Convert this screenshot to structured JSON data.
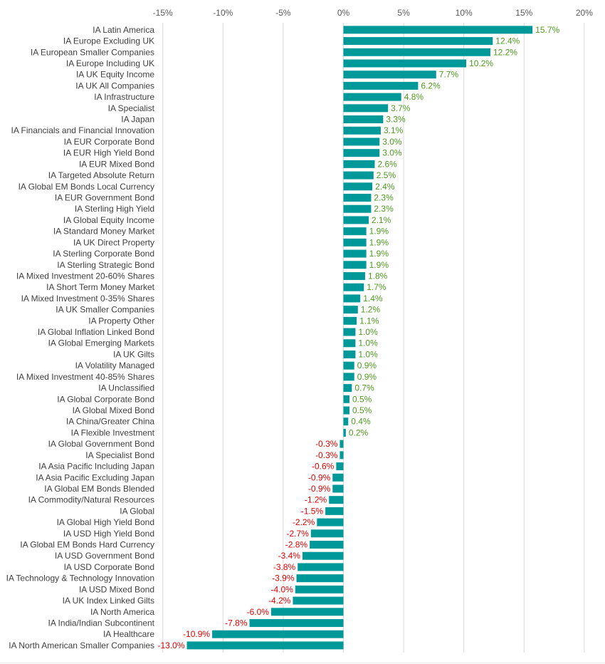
{
  "chart_data": {
    "type": "bar",
    "orientation": "horizontal",
    "xlim": [
      -15,
      20
    ],
    "x_ticks": [
      -15,
      -10,
      -5,
      0,
      5,
      10,
      15,
      20
    ],
    "x_tick_labels": [
      "-15%",
      "-10%",
      "-5%",
      "0%",
      "5%",
      "10%",
      "15%",
      "20%"
    ],
    "grid": true,
    "legend": "none",
    "colors": {
      "bar": "#00999a",
      "positive_label": "#4e9a1e",
      "negative_label": "#e00000",
      "grid": "#d9d9d9",
      "category_text": "#404040",
      "tick_text": "#595959"
    },
    "categories": [
      "IA Latin America",
      "IA Europe Excluding UK",
      "IA European Smaller Companies",
      "IA Europe Including UK",
      "IA UK Equity Income",
      "IA UK All Companies",
      "IA Infrastructure",
      "IA Specialist",
      "IA Japan",
      "IA Financials and Financial Innovation",
      "IA EUR Corporate Bond",
      "IA EUR High Yield Bond",
      "IA EUR Mixed Bond",
      "IA Targeted Absolute Return",
      "IA Global EM Bonds Local Currency",
      "IA EUR Government Bond",
      "IA Sterling High Yield",
      "IA Global Equity Income",
      "IA Standard Money Market",
      "IA UK Direct Property",
      "IA Sterling Corporate Bond",
      "IA Sterling Strategic Bond",
      "IA Mixed Investment 20-60% Shares",
      "IA Short Term Money Market",
      "IA Mixed Investment 0-35% Shares",
      "IA UK Smaller Companies",
      "IA Property Other",
      "IA Global Inflation Linked Bond",
      "IA Global Emerging Markets",
      "IA UK Gilts",
      "IA Volatility Managed",
      "IA Mixed Investment 40-85% Shares",
      "IA Unclassified",
      "IA Global Corporate Bond",
      "IA Global Mixed Bond",
      "IA China/Greater China",
      "IA Flexible Investment",
      "IA Global Government Bond",
      "IA Specialist Bond",
      "IA Asia Pacific Including Japan",
      "IA Asia Pacific Excluding Japan",
      "IA Global EM Bonds Blended",
      "IA Commodity/Natural Resources",
      "IA Global",
      "IA Global High Yield Bond",
      "IA USD High Yield Bond",
      "IA Global EM Bonds Hard Currency",
      "IA USD Government Bond",
      "IA USD Corporate Bond",
      "IA Technology & Technology Innovation",
      "IA USD Mixed Bond",
      "IA UK Index Linked Gilts",
      "IA North America",
      "IA India/Indian Subcontinent",
      "IA Healthcare",
      "IA North American Smaller Companies"
    ],
    "values": [
      15.7,
      12.4,
      12.2,
      10.2,
      7.7,
      6.2,
      4.8,
      3.7,
      3.3,
      3.1,
      3.0,
      3.0,
      2.6,
      2.5,
      2.4,
      2.3,
      2.3,
      2.1,
      1.9,
      1.9,
      1.9,
      1.9,
      1.8,
      1.7,
      1.4,
      1.2,
      1.1,
      1.0,
      1.0,
      1.0,
      0.9,
      0.9,
      0.7,
      0.5,
      0.5,
      0.4,
      0.2,
      -0.3,
      -0.3,
      -0.6,
      -0.9,
      -0.9,
      -1.2,
      -1.5,
      -2.2,
      -2.7,
      -2.8,
      -3.4,
      -3.8,
      -3.9,
      -4.0,
      -4.2,
      -6.0,
      -7.8,
      -10.9,
      -13.0
    ],
    "value_labels": [
      "15.7%",
      "12.4%",
      "12.2%",
      "10.2%",
      "7.7%",
      "6.2%",
      "4.8%",
      "3.7%",
      "3.3%",
      "3.1%",
      "3.0%",
      "3.0%",
      "2.6%",
      "2.5%",
      "2.4%",
      "2.3%",
      "2.3%",
      "2.1%",
      "1.9%",
      "1.9%",
      "1.9%",
      "1.9%",
      "1.8%",
      "1.7%",
      "1.4%",
      "1.2%",
      "1.1%",
      "1.0%",
      "1.0%",
      "1.0%",
      "0.9%",
      "0.9%",
      "0.7%",
      "0.5%",
      "0.5%",
      "0.4%",
      "0.2%",
      "-0.3%",
      "-0.3%",
      "-0.6%",
      "-0.9%",
      "-0.9%",
      "-1.2%",
      "-1.5%",
      "-2.2%",
      "-2.7%",
      "-2.8%",
      "-3.4%",
      "-3.8%",
      "-3.9%",
      "-4.0%",
      "-4.2%",
      "-6.0%",
      "-7.8%",
      "-10.9%",
      "-13.0%"
    ]
  }
}
